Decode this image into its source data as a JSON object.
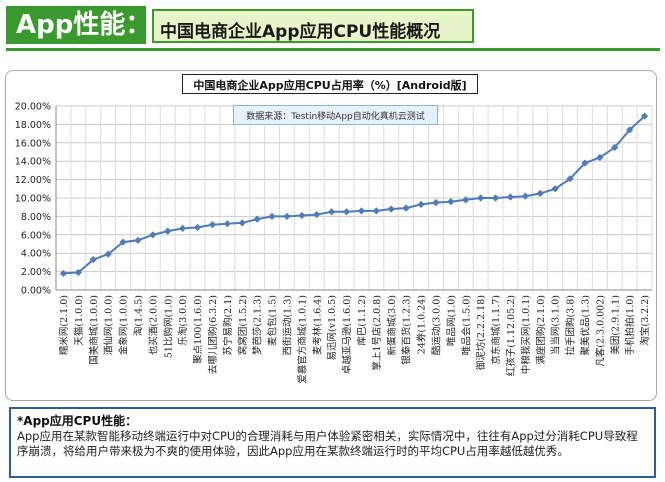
{
  "header": {
    "badge": "App性能：",
    "title": "中国电商企业App应用CPU性能概况"
  },
  "note": "数据来源：Testin移动App自动化真机云测试",
  "footer": {
    "heading": "*App应用CPU性能：",
    "body": "App应用在某款智能移动终端运行中对CPU的合理消耗与用户体验紧密相关，实际情况中，往往有App过分消耗CPU导致程序崩溃，将给用户带来极为不爽的使用体验，因此App应用在某款终端运行时的平均CPU占用率越低越优秀。"
  },
  "chart_data": {
    "type": "line",
    "title": "中国电商企业App应用CPU占用率（%）[Android版]",
    "xlabel": "",
    "ylabel": "",
    "ylim": [
      0,
      20
    ],
    "yticks": [
      "0.00%",
      "2.00%",
      "4.00%",
      "6.00%",
      "8.00%",
      "10.00%",
      "12.00%",
      "14.00%",
      "16.00%",
      "18.00%",
      "20.00%"
    ],
    "grid": true,
    "line_color": "#4f7cb8",
    "categories": [
      "糯米网(2.1.0)",
      "天猫(1.0.0)",
      "国美商城(1.0.0)",
      "酒仙网(1.0.0)",
      "金象网(1.0.0)",
      "淘(1.4.5)",
      "也买酒(2.0.0)",
      "51比购网(1.0)",
      "乐淘(3.0.0)",
      "聚点100(1.6.0)",
      "去哪儿团购(6.3.2)",
      "苏宁易购(2.1)",
      "窝窝团(1.5.2)",
      "梦芭莎(2.1.3)",
      "麦包包(1.5)",
      "西街运动(1.3)",
      "爱慕官方商城(1.0.1)",
      "麦考林(1.6.4)",
      "易迅网(v1.0.5)",
      "卓越亚马逊(1.6.0)",
      "库巴(1.1.2)",
      "掌上1号店(2.0.8)",
      "新蛋商城(3.0)",
      "银泰百货(1.2.3)",
      "24券(1.0.24)",
      "酷运动(3.0.0)",
      "唯品网(1.0)",
      "唯品会(1.5.0)",
      "御泥坊(2.2.2.18)",
      "京东商城(1.1.7)",
      "红孩子(1.12.05.2)",
      "中粮我买网(1.0.1)",
      "满座团购(2.1.0)",
      "当当网(3.1.0)",
      "拉手团购(3.8)",
      "聚美优品(1.3)",
      "凡客(2.3.0.002)",
      "美团(2.9.1.1)",
      "手机拍拍(1.0)",
      "淘宝(3.2.2)"
    ],
    "values": [
      1.8,
      1.9,
      3.3,
      3.9,
      5.2,
      5.4,
      6.0,
      6.4,
      6.7,
      6.8,
      7.1,
      7.2,
      7.3,
      7.7,
      8.0,
      8.0,
      8.1,
      8.2,
      8.5,
      8.5,
      8.6,
      8.6,
      8.8,
      8.9,
      9.3,
      9.5,
      9.6,
      9.8,
      10.0,
      10.0,
      10.1,
      10.2,
      10.5,
      11.0,
      12.1,
      13.8,
      14.4,
      15.5,
      17.4,
      18.9
    ]
  }
}
